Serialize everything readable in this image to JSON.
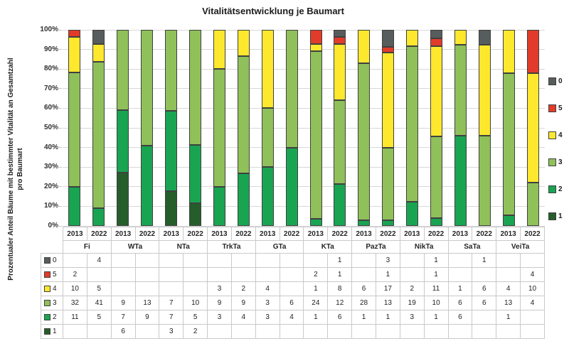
{
  "title": "Vitalitätsentwicklung je Baumart",
  "y_axis": {
    "label_lines": [
      "Prozentualer Anteil Bäume mit bestimmter Vitalität an Gesamtzahl",
      "pro Baumart"
    ],
    "ticks": [
      "0%",
      "10%",
      "20%",
      "30%",
      "40%",
      "50%",
      "60%",
      "70%",
      "80%",
      "90%",
      "100%"
    ]
  },
  "colors": {
    "segment_border": "#404040",
    "gridline": "#d8d8d8",
    "table_border": "#c9c9c9"
  },
  "chart_data": {
    "type": "bar",
    "subtype": "stacked-100-percent-with-data-table",
    "title": "Vitalitätsentwicklung je Baumart",
    "ylabel": "Prozentualer Anteil Bäume mit bestimmter Vitalität an Gesamtzahl pro Baumart",
    "ylim": [
      0,
      100
    ],
    "grid": true,
    "legend_position": "right",
    "groups": [
      "Fi",
      "WTa",
      "NTa",
      "TrkTa",
      "GTa",
      "KTa",
      "PazTa",
      "NikTa",
      "SaTa",
      "VeiTa"
    ],
    "years": [
      "2013",
      "2022"
    ],
    "column_order": [
      "Fi 2013",
      "Fi 2022",
      "WTa 2013",
      "WTa 2022",
      "NTa 2013",
      "NTa 2022",
      "TrkTa 2013",
      "TrkTa 2022",
      "GTa 2013",
      "GTa 2022",
      "KTa 2013",
      "KTa 2022",
      "PazTa 2013",
      "PazTa 2022",
      "NikTa 2013",
      "NikTa 2022",
      "SaTa 2013",
      "SaTa 2022",
      "VeiTa 2013",
      "VeiTa 2022"
    ],
    "stack_order_bottom_to_top": [
      "1",
      "2",
      "3",
      "4",
      "5",
      "0"
    ],
    "series": [
      {
        "name": "0",
        "color": "#575c5d",
        "values": [
          null,
          4,
          null,
          null,
          null,
          null,
          null,
          null,
          null,
          null,
          null,
          1,
          null,
          3,
          null,
          1,
          null,
          1,
          null,
          null
        ]
      },
      {
        "name": "5",
        "color": "#e23b2a",
        "values": [
          2,
          null,
          null,
          null,
          null,
          null,
          null,
          null,
          null,
          null,
          2,
          1,
          null,
          1,
          null,
          1,
          null,
          null,
          null,
          4
        ]
      },
      {
        "name": "4",
        "color": "#fde82d",
        "values": [
          10,
          5,
          null,
          null,
          null,
          null,
          3,
          2,
          4,
          null,
          1,
          8,
          6,
          17,
          2,
          11,
          1,
          6,
          4,
          10
        ]
      },
      {
        "name": "3",
        "color": "#8fc05a",
        "values": [
          32,
          41,
          9,
          13,
          7,
          10,
          9,
          9,
          3,
          6,
          24,
          12,
          28,
          13,
          19,
          10,
          6,
          6,
          13,
          4
        ]
      },
      {
        "name": "2",
        "color": "#19a452",
        "values": [
          11,
          5,
          7,
          9,
          7,
          5,
          3,
          4,
          3,
          4,
          1,
          6,
          1,
          1,
          3,
          1,
          6,
          null,
          1,
          null
        ]
      },
      {
        "name": "1",
        "color": "#265e2b",
        "values": [
          null,
          null,
          6,
          null,
          3,
          2,
          null,
          null,
          null,
          null,
          null,
          null,
          null,
          null,
          null,
          null,
          null,
          null,
          null,
          null
        ]
      }
    ]
  }
}
